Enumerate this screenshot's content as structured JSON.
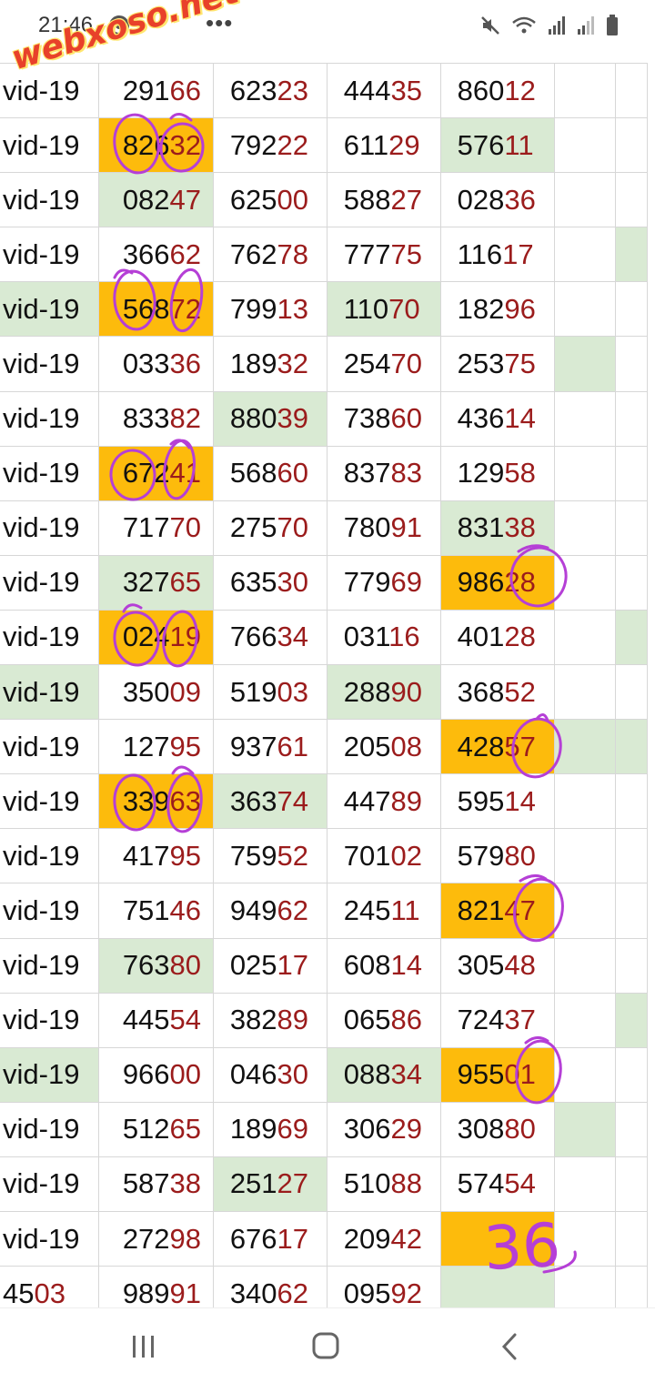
{
  "status_bar": {
    "time": "21:46",
    "more": "•••",
    "icons": [
      "chrome-icon",
      "mute-icon",
      "wifi-icon",
      "signal-icon",
      "signal-icon-2",
      "battery-icon"
    ]
  },
  "watermark": "webxoso.net",
  "grid": {
    "rows": [
      {
        "label": "vid-19",
        "label_bg": "",
        "cells": [
          {
            "head": "291",
            "tail": "66",
            "bg": ""
          },
          {
            "head": "623",
            "tail": "23",
            "bg": ""
          },
          {
            "head": "444",
            "tail": "35",
            "bg": ""
          },
          {
            "head": "860",
            "tail": "12",
            "bg": ""
          }
        ],
        "extra_bg": "",
        "edge_bg": ""
      },
      {
        "label": "vid-19",
        "label_bg": "",
        "cells": [
          {
            "head": "826",
            "tail": "32",
            "bg": "orange"
          },
          {
            "head": "792",
            "tail": "22",
            "bg": ""
          },
          {
            "head": "611",
            "tail": "29",
            "bg": ""
          },
          {
            "head": "576",
            "tail": "11",
            "bg": "green"
          }
        ],
        "extra_bg": "",
        "edge_bg": ""
      },
      {
        "label": "vid-19",
        "label_bg": "",
        "cells": [
          {
            "head": "082",
            "tail": "47",
            "bg": "green"
          },
          {
            "head": "625",
            "tail": "00",
            "bg": ""
          },
          {
            "head": "588",
            "tail": "27",
            "bg": ""
          },
          {
            "head": "028",
            "tail": "36",
            "bg": ""
          }
        ],
        "extra_bg": "",
        "edge_bg": ""
      },
      {
        "label": "vid-19",
        "label_bg": "",
        "cells": [
          {
            "head": "366",
            "tail": "62",
            "bg": ""
          },
          {
            "head": "762",
            "tail": "78",
            "bg": ""
          },
          {
            "head": "777",
            "tail": "75",
            "bg": ""
          },
          {
            "head": "116",
            "tail": "17",
            "bg": ""
          }
        ],
        "extra_bg": "",
        "edge_bg": "green"
      },
      {
        "label": "vid-19",
        "label_bg": "green",
        "cells": [
          {
            "head": "568",
            "tail": "72",
            "bg": "orange"
          },
          {
            "head": "799",
            "tail": "13",
            "bg": ""
          },
          {
            "head": "110",
            "tail": "70",
            "bg": "green"
          },
          {
            "head": "182",
            "tail": "96",
            "bg": ""
          }
        ],
        "extra_bg": "",
        "edge_bg": ""
      },
      {
        "label": "vid-19",
        "label_bg": "",
        "cells": [
          {
            "head": "033",
            "tail": "36",
            "bg": ""
          },
          {
            "head": "189",
            "tail": "32",
            "bg": ""
          },
          {
            "head": "254",
            "tail": "70",
            "bg": ""
          },
          {
            "head": "253",
            "tail": "75",
            "bg": ""
          }
        ],
        "extra_bg": "green",
        "edge_bg": ""
      },
      {
        "label": "vid-19",
        "label_bg": "",
        "cells": [
          {
            "head": "833",
            "tail": "82",
            "bg": ""
          },
          {
            "head": "880",
            "tail": "39",
            "bg": "green"
          },
          {
            "head": "738",
            "tail": "60",
            "bg": ""
          },
          {
            "head": "436",
            "tail": "14",
            "bg": ""
          }
        ],
        "extra_bg": "",
        "edge_bg": ""
      },
      {
        "label": "vid-19",
        "label_bg": "",
        "cells": [
          {
            "head": "672",
            "tail": "41",
            "bg": "orange"
          },
          {
            "head": "568",
            "tail": "60",
            "bg": ""
          },
          {
            "head": "837",
            "tail": "83",
            "bg": ""
          },
          {
            "head": "129",
            "tail": "58",
            "bg": ""
          }
        ],
        "extra_bg": "",
        "edge_bg": ""
      },
      {
        "label": "vid-19",
        "label_bg": "",
        "cells": [
          {
            "head": "717",
            "tail": "70",
            "bg": ""
          },
          {
            "head": "275",
            "tail": "70",
            "bg": ""
          },
          {
            "head": "780",
            "tail": "91",
            "bg": ""
          },
          {
            "head": "831",
            "tail": "38",
            "bg": "green"
          }
        ],
        "extra_bg": "",
        "edge_bg": ""
      },
      {
        "label": "vid-19",
        "label_bg": "",
        "cells": [
          {
            "head": "327",
            "tail": "65",
            "bg": "green"
          },
          {
            "head": "635",
            "tail": "30",
            "bg": ""
          },
          {
            "head": "779",
            "tail": "69",
            "bg": ""
          },
          {
            "head": "986",
            "tail": "28",
            "bg": "orange"
          }
        ],
        "extra_bg": "",
        "edge_bg": ""
      },
      {
        "label": "vid-19",
        "label_bg": "",
        "cells": [
          {
            "head": "024",
            "tail": "19",
            "bg": "orange"
          },
          {
            "head": "766",
            "tail": "34",
            "bg": ""
          },
          {
            "head": "031",
            "tail": "16",
            "bg": ""
          },
          {
            "head": "401",
            "tail": "28",
            "bg": ""
          }
        ],
        "extra_bg": "",
        "edge_bg": "green"
      },
      {
        "label": "vid-19",
        "label_bg": "green",
        "cells": [
          {
            "head": "350",
            "tail": "09",
            "bg": ""
          },
          {
            "head": "519",
            "tail": "03",
            "bg": ""
          },
          {
            "head": "288",
            "tail": "90",
            "bg": "green"
          },
          {
            "head": "368",
            "tail": "52",
            "bg": ""
          }
        ],
        "extra_bg": "",
        "edge_bg": ""
      },
      {
        "label": "vid-19",
        "label_bg": "",
        "cells": [
          {
            "head": "127",
            "tail": "95",
            "bg": ""
          },
          {
            "head": "937",
            "tail": "61",
            "bg": ""
          },
          {
            "head": "205",
            "tail": "08",
            "bg": ""
          },
          {
            "head": "428",
            "tail": "57",
            "bg": "orange"
          }
        ],
        "extra_bg": "green",
        "edge_bg": "green"
      },
      {
        "label": "vid-19",
        "label_bg": "",
        "cells": [
          {
            "head": "339",
            "tail": "63",
            "bg": "orange"
          },
          {
            "head": "363",
            "tail": "74",
            "bg": "green"
          },
          {
            "head": "447",
            "tail": "89",
            "bg": ""
          },
          {
            "head": "595",
            "tail": "14",
            "bg": ""
          }
        ],
        "extra_bg": "",
        "edge_bg": ""
      },
      {
        "label": "vid-19",
        "label_bg": "",
        "cells": [
          {
            "head": "417",
            "tail": "95",
            "bg": ""
          },
          {
            "head": "759",
            "tail": "52",
            "bg": ""
          },
          {
            "head": "701",
            "tail": "02",
            "bg": ""
          },
          {
            "head": "579",
            "tail": "80",
            "bg": ""
          }
        ],
        "extra_bg": "",
        "edge_bg": ""
      },
      {
        "label": "vid-19",
        "label_bg": "",
        "cells": [
          {
            "head": "751",
            "tail": "46",
            "bg": ""
          },
          {
            "head": "949",
            "tail": "62",
            "bg": ""
          },
          {
            "head": "245",
            "tail": "11",
            "bg": ""
          },
          {
            "head": "821",
            "tail": "47",
            "bg": "orange"
          }
        ],
        "extra_bg": "",
        "edge_bg": ""
      },
      {
        "label": "vid-19",
        "label_bg": "",
        "cells": [
          {
            "head": "763",
            "tail": "80",
            "bg": "green"
          },
          {
            "head": "025",
            "tail": "17",
            "bg": ""
          },
          {
            "head": "608",
            "tail": "14",
            "bg": ""
          },
          {
            "head": "305",
            "tail": "48",
            "bg": ""
          }
        ],
        "extra_bg": "",
        "edge_bg": ""
      },
      {
        "label": "vid-19",
        "label_bg": "",
        "cells": [
          {
            "head": "445",
            "tail": "54",
            "bg": ""
          },
          {
            "head": "382",
            "tail": "89",
            "bg": ""
          },
          {
            "head": "065",
            "tail": "86",
            "bg": ""
          },
          {
            "head": "724",
            "tail": "37",
            "bg": ""
          }
        ],
        "extra_bg": "",
        "edge_bg": "green"
      },
      {
        "label": "vid-19",
        "label_bg": "green",
        "cells": [
          {
            "head": "966",
            "tail": "00",
            "bg": ""
          },
          {
            "head": "046",
            "tail": "30",
            "bg": ""
          },
          {
            "head": "088",
            "tail": "34",
            "bg": "green"
          },
          {
            "head": "955",
            "tail": "01",
            "bg": "orange"
          }
        ],
        "extra_bg": "",
        "edge_bg": ""
      },
      {
        "label": "vid-19",
        "label_bg": "",
        "cells": [
          {
            "head": "512",
            "tail": "65",
            "bg": ""
          },
          {
            "head": "189",
            "tail": "69",
            "bg": ""
          },
          {
            "head": "306",
            "tail": "29",
            "bg": ""
          },
          {
            "head": "308",
            "tail": "80",
            "bg": ""
          }
        ],
        "extra_bg": "green",
        "edge_bg": ""
      },
      {
        "label": "vid-19",
        "label_bg": "",
        "cells": [
          {
            "head": "587",
            "tail": "38",
            "bg": ""
          },
          {
            "head": "251",
            "tail": "27",
            "bg": "green"
          },
          {
            "head": "510",
            "tail": "88",
            "bg": ""
          },
          {
            "head": "574",
            "tail": "54",
            "bg": ""
          }
        ],
        "extra_bg": "",
        "edge_bg": ""
      },
      {
        "label": "vid-19",
        "label_bg": "",
        "cells": [
          {
            "head": "272",
            "tail": "98",
            "bg": ""
          },
          {
            "head": "676",
            "tail": "17",
            "bg": ""
          },
          {
            "head": "209",
            "tail": "42",
            "bg": ""
          },
          {
            "head": "",
            "tail": "",
            "bg": "orange"
          }
        ],
        "extra_bg": "",
        "edge_bg": ""
      },
      {
        "label": "",
        "label_head": "45",
        "label_tail": "03",
        "label_bg": "",
        "cells": [
          {
            "head": "989",
            "tail": "91",
            "bg": ""
          },
          {
            "head": "340",
            "tail": "62",
            "bg": ""
          },
          {
            "head": "095",
            "tail": "92",
            "bg": ""
          },
          {
            "head": "",
            "tail": "",
            "bg": "green"
          }
        ],
        "extra_bg": "",
        "edge_bg": ""
      }
    ]
  },
  "annotation_text": "36",
  "colors": {
    "orange_highlight": "#fdbb0c",
    "green_highlight": "#d9ead3",
    "last_two_digits": "#9b1c1c",
    "marker": "#b53fd6"
  },
  "nav": {
    "recents": "recents-icon",
    "home": "home-icon",
    "back": "back-icon"
  }
}
